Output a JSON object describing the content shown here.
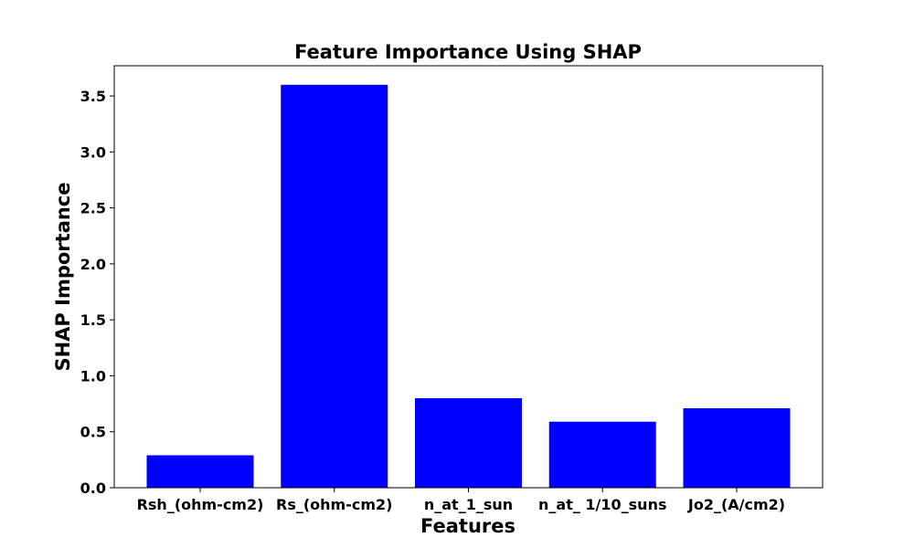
{
  "chart_data": {
    "type": "bar",
    "title": "Feature Importance Using SHAP",
    "xlabel": "Features",
    "ylabel": "SHAP Importance",
    "categories": [
      "Rsh_(ohm-cm2)",
      "Rs_(ohm-cm2)",
      "n_at_1_sun",
      "n_at_ 1/10_suns",
      "Jo2_(A/cm2)"
    ],
    "values": [
      0.29,
      3.6,
      0.8,
      0.59,
      0.71
    ],
    "ylim": [
      0,
      3.77
    ],
    "yticks": [
      0.0,
      0.5,
      1.0,
      1.5,
      2.0,
      2.5,
      3.0,
      3.5
    ],
    "ytick_labels": [
      "0.0",
      "0.5",
      "1.0",
      "1.5",
      "2.0",
      "2.5",
      "3.0",
      "3.5"
    ],
    "grid": false,
    "bar_color": "#0000ff"
  }
}
